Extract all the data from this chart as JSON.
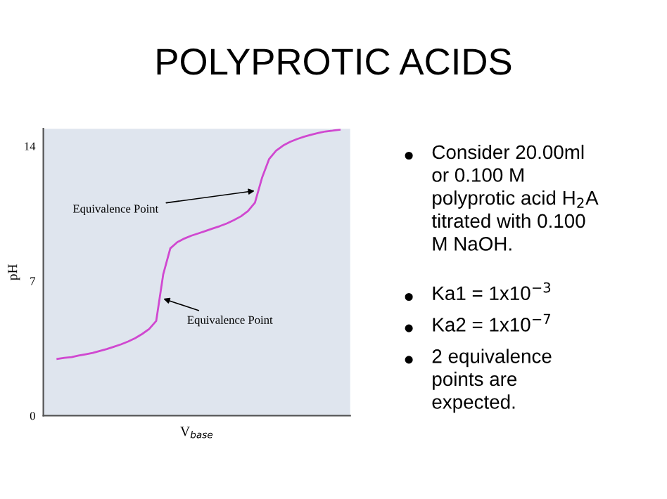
{
  "chart_data": {
    "type": "line",
    "title": "POLYPROTIC ACIDS",
    "xlabel": "V$_{base}$",
    "ylabel": "pH",
    "categories": [
      null,
      null,
      null,
      null,
      null,
      null,
      null,
      null,
      null,
      null,
      null,
      null,
      null,
      null,
      null,
      null,
      null,
      null,
      null,
      null,
      null,
      null,
      null,
      null,
      null,
      null,
      null,
      null,
      null,
      null,
      null,
      null,
      null,
      null,
      null,
      null,
      null,
      null,
      null,
      null,
      null
    ],
    "series": [
      {
        "color": "#d048d0",
        "values": [
          2.95,
          3.0,
          3.04,
          3.12,
          3.19,
          3.26,
          3.36,
          3.46,
          3.58,
          3.7,
          3.85,
          4.02,
          4.24,
          4.5,
          4.92,
          7.35,
          8.69,
          9.01,
          9.2,
          9.35,
          9.47,
          9.59,
          9.72,
          9.84,
          9.98,
          10.15,
          10.35,
          10.62,
          11.06,
          12.35,
          13.32,
          13.76,
          14.03,
          14.22,
          14.37,
          14.49,
          14.59,
          14.68,
          14.76,
          14.8,
          14.85
        ]
      }
    ],
    "ylim": [
      0,
      14.9
    ],
    "yticks": [
      0,
      7,
      14
    ],
    "grid": false,
    "marker": "none",
    "line_style": "solid",
    "annotations": [
      "Equivalence Point",
      "Equivalence Point",
      "Consider 20.00ml\nor 0.100 M\npolyprotic acid H$_{2}$A\ntitrated with 0.100\nM NaOH.",
      "Ka1 = 1x10$^{−3}$",
      "Ka2 = 1x10$^{−7}$",
      "2 equivalence\npoints are\nexpected."
    ]
  }
}
